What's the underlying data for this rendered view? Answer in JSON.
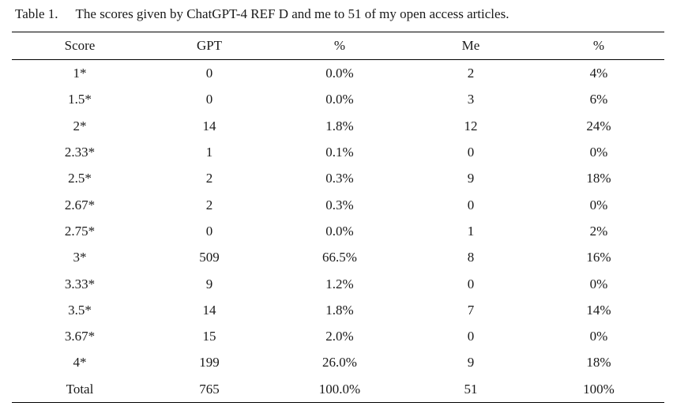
{
  "caption": {
    "label": "Table 1.",
    "text": "The scores given by ChatGPT-4 REF D and me to 51 of my open access articles."
  },
  "table": {
    "headers": [
      "Score",
      "GPT",
      "%",
      "Me",
      "%"
    ],
    "rows": [
      [
        "1*",
        "0",
        "0.0%",
        "2",
        "4%"
      ],
      [
        "1.5*",
        "0",
        "0.0%",
        "3",
        "6%"
      ],
      [
        "2*",
        "14",
        "1.8%",
        "12",
        "24%"
      ],
      [
        "2.33*",
        "1",
        "0.1%",
        "0",
        "0%"
      ],
      [
        "2.5*",
        "2",
        "0.3%",
        "9",
        "18%"
      ],
      [
        "2.67*",
        "2",
        "0.3%",
        "0",
        "0%"
      ],
      [
        "2.75*",
        "0",
        "0.0%",
        "1",
        "2%"
      ],
      [
        "3*",
        "509",
        "66.5%",
        "8",
        "16%"
      ],
      [
        "3.33*",
        "9",
        "1.2%",
        "0",
        "0%"
      ],
      [
        "3.5*",
        "14",
        "1.8%",
        "7",
        "14%"
      ],
      [
        "3.67*",
        "15",
        "2.0%",
        "0",
        "0%"
      ],
      [
        "4*",
        "199",
        "26.0%",
        "9",
        "18%"
      ],
      [
        "Total",
        "765",
        "100.0%",
        "51",
        "100%"
      ]
    ]
  }
}
